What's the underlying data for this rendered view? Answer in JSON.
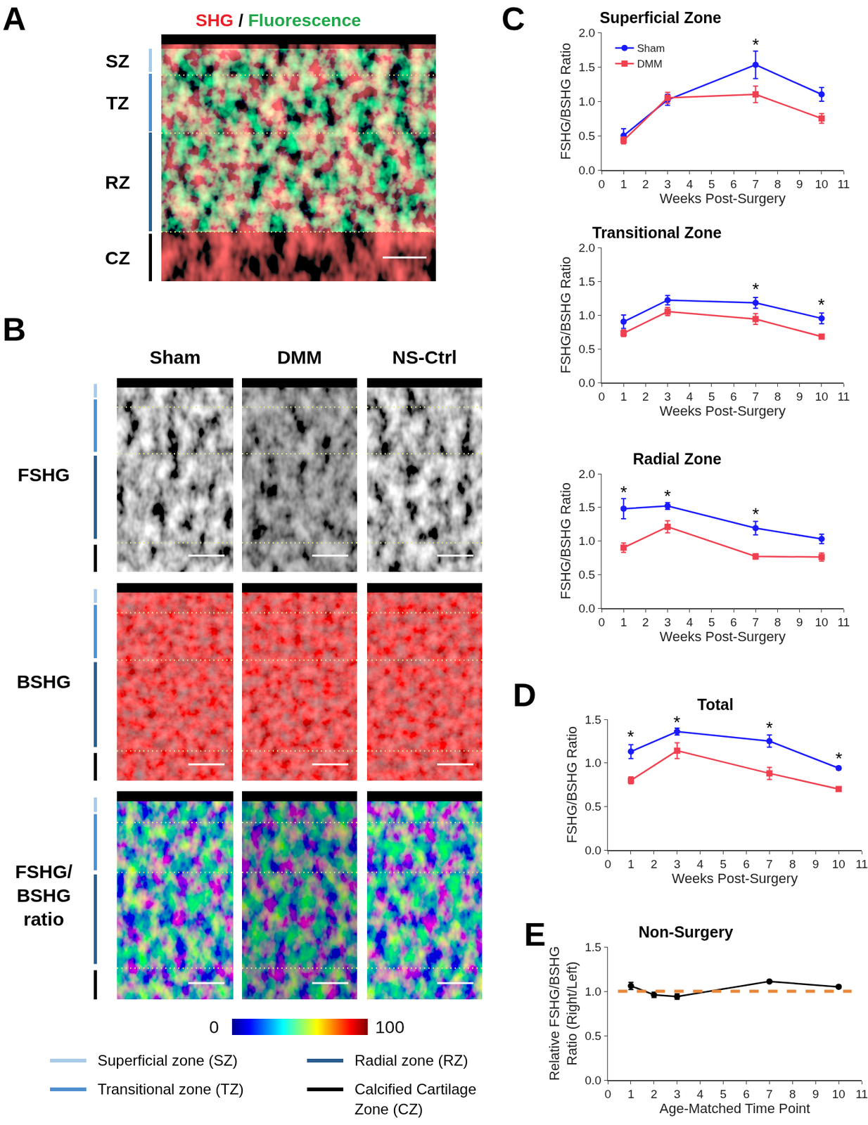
{
  "panels": {
    "A": {
      "letter": "A",
      "title_parts": [
        {
          "text": "SHG",
          "color": "#e8202a"
        },
        {
          "text": " / ",
          "color": "#000000"
        },
        {
          "text": "Fluorescence",
          "color": "#1fa84a"
        }
      ],
      "zones": [
        "SZ",
        "TZ",
        "RZ",
        "CZ"
      ]
    },
    "B": {
      "letter": "B",
      "columns": [
        "Sham",
        "DMM",
        "NS-Ctrl"
      ],
      "rows": [
        "FSHG",
        "BSHG",
        "FSHG/\nBSHG\nratio"
      ],
      "colorbar": {
        "range": [
          0,
          100
        ],
        "ticks": [
          0,
          100
        ]
      },
      "zone_legend": [
        {
          "label": "Superficial zone (SZ)",
          "color": "#a9cbe8"
        },
        {
          "label": "Radial zone (RZ)",
          "color": "#2a5d8f"
        },
        {
          "label": "Transitional zone (TZ)",
          "color": "#4f8fcf"
        },
        {
          "label": "Calcified Cartilage\nZone (CZ)",
          "color": "#000000"
        }
      ]
    }
  },
  "chart_data": [
    {
      "type": "line",
      "panel_letter": "C",
      "title": "Superficial Zone",
      "x_label": "Weeks Post-Surgery",
      "y_label": "FSHG/BSHG Ratio",
      "x": [
        1,
        3,
        7,
        10
      ],
      "series": [
        {
          "name": "Sham",
          "color": "#1a1aff",
          "marker": "circle",
          "line_style": "solid",
          "values": [
            0.5,
            1.02,
            1.53,
            1.1
          ],
          "errors": [
            0.1,
            0.08,
            0.2,
            0.1
          ]
        },
        {
          "name": "DMM",
          "color": "#f04050",
          "marker": "square",
          "line_style": "solid",
          "values": [
            0.43,
            1.05,
            1.1,
            0.75
          ],
          "errors": [
            0.05,
            0.08,
            0.12,
            0.07
          ]
        }
      ],
      "annotations": [
        {
          "x": 7,
          "y": 1.82,
          "text": "*"
        }
      ],
      "xlim": [
        0,
        11
      ],
      "xticks": [
        0,
        1,
        2,
        3,
        4,
        5,
        6,
        7,
        8,
        9,
        10,
        11
      ],
      "ylim": [
        0,
        2
      ],
      "yticks": [
        {
          "value": 0,
          "label": "0.0"
        },
        {
          "value": 0.5,
          "label": "0.5"
        },
        {
          "value": 1,
          "label": "1.0"
        },
        {
          "value": 1.5,
          "label": "1.5"
        },
        {
          "value": 2,
          "label": "2.0"
        }
      ],
      "grid": false,
      "legend": "upper left"
    },
    {
      "type": "line",
      "title": "Transitional Zone",
      "x_label": "Weeks Post-Surgery",
      "y_label": "FSHG/BSHG Ratio",
      "x": [
        1,
        3,
        7,
        10
      ],
      "series": [
        {
          "name": "Sham",
          "color": "#1a1aff",
          "marker": "circle",
          "line_style": "solid",
          "values": [
            0.9,
            1.22,
            1.18,
            0.95
          ],
          "errors": [
            0.1,
            0.07,
            0.08,
            0.08
          ]
        },
        {
          "name": "DMM",
          "color": "#f04050",
          "marker": "square",
          "line_style": "solid",
          "values": [
            0.73,
            1.05,
            0.94,
            0.68
          ],
          "errors": [
            0.05,
            0.06,
            0.08,
            0.02
          ]
        }
      ],
      "annotations": [
        {
          "x": 7,
          "y": 1.38,
          "text": "*"
        },
        {
          "x": 10,
          "y": 1.15,
          "text": "*"
        }
      ],
      "xlim": [
        0,
        11
      ],
      "xticks": [
        0,
        1,
        2,
        3,
        4,
        5,
        6,
        7,
        8,
        9,
        10,
        11
      ],
      "ylim": [
        0,
        2
      ],
      "yticks": [
        {
          "value": 0,
          "label": "0.0"
        },
        {
          "value": 0.5,
          "label": "0.5"
        },
        {
          "value": 1,
          "label": "1.0"
        },
        {
          "value": 1.5,
          "label": "1.5"
        },
        {
          "value": 2,
          "label": "2.0"
        }
      ],
      "grid": false
    },
    {
      "type": "line",
      "title": "Radial Zone",
      "x_label": "Weeks Post-Surgery",
      "y_label": "FSHG/BSHG Ratio",
      "x": [
        1,
        3,
        7,
        10
      ],
      "series": [
        {
          "name": "Sham",
          "color": "#1a1aff",
          "marker": "circle",
          "line_style": "solid",
          "values": [
            1.48,
            1.52,
            1.19,
            1.03
          ],
          "errors": [
            0.15,
            0.05,
            0.1,
            0.07
          ]
        },
        {
          "name": "DMM",
          "color": "#f04050",
          "marker": "square",
          "line_style": "solid",
          "values": [
            0.9,
            1.21,
            0.77,
            0.76
          ],
          "errors": [
            0.07,
            0.09,
            0.04,
            0.06
          ]
        }
      ],
      "annotations": [
        {
          "x": 1,
          "y": 1.73,
          "text": "*"
        },
        {
          "x": 3,
          "y": 1.67,
          "text": "*"
        },
        {
          "x": 7,
          "y": 1.4,
          "text": "*"
        }
      ],
      "xlim": [
        0,
        11
      ],
      "xticks": [
        0,
        1,
        2,
        3,
        4,
        5,
        6,
        7,
        8,
        9,
        10,
        11
      ],
      "ylim": [
        0,
        2
      ],
      "yticks": [
        {
          "value": 0,
          "label": "0.0"
        },
        {
          "value": 0.5,
          "label": "0.5"
        },
        {
          "value": 1,
          "label": "1.0"
        },
        {
          "value": 1.5,
          "label": "1.5"
        },
        {
          "value": 2,
          "label": "2.0"
        }
      ],
      "grid": false
    },
    {
      "type": "line",
      "panel_letter": "D",
      "title": "Total",
      "x_label": "Weeks Post-Surgery",
      "y_label": "FSHG/BSHG Ratio",
      "x": [
        1,
        3,
        7,
        10
      ],
      "series": [
        {
          "name": "Sham",
          "color": "#1a1aff",
          "marker": "circle",
          "line_style": "solid",
          "values": [
            1.13,
            1.36,
            1.25,
            0.94
          ],
          "errors": [
            0.08,
            0.04,
            0.07,
            0.02
          ]
        },
        {
          "name": "DMM",
          "color": "#f04050",
          "marker": "square",
          "line_style": "solid",
          "values": [
            0.8,
            1.14,
            0.88,
            0.7
          ],
          "errors": [
            0.04,
            0.09,
            0.07,
            0.01
          ]
        }
      ],
      "annotations": [
        {
          "x": 1,
          "y": 1.3,
          "text": "*"
        },
        {
          "x": 3,
          "y": 1.47,
          "text": "*"
        },
        {
          "x": 7,
          "y": 1.4,
          "text": "*"
        },
        {
          "x": 10,
          "y": 1.05,
          "text": "*"
        }
      ],
      "xlim": [
        0,
        11
      ],
      "xticks": [
        0,
        1,
        2,
        3,
        4,
        5,
        6,
        7,
        8,
        9,
        10,
        11
      ],
      "ylim": [
        0,
        1.5
      ],
      "yticks": [
        {
          "value": 0,
          "label": "0.0"
        },
        {
          "value": 0.5,
          "label": "0.5"
        },
        {
          "value": 1,
          "label": "1.0"
        },
        {
          "value": 1.5,
          "label": "1.5"
        }
      ],
      "grid": false
    },
    {
      "type": "line",
      "panel_letter": "E",
      "title": "Non-Surgery",
      "x_label": "Age-Matched Time Point",
      "y_label": "Relative FSHG/BSHG\nRatio (Right/Left)",
      "x": [
        1,
        2,
        3,
        7,
        10
      ],
      "series": [
        {
          "color": "#000000",
          "marker": "circle",
          "line_style": "solid",
          "values": [
            1.06,
            0.96,
            0.94,
            1.11,
            1.05
          ],
          "errors": [
            0.04,
            0.03,
            0.03,
            0.01,
            0.01
          ]
        }
      ],
      "hline": {
        "value": 1.0,
        "color": "#e8873a",
        "line_style": "dash"
      },
      "xlim": [
        0,
        11
      ],
      "xticks": [
        0,
        1,
        2,
        3,
        4,
        5,
        6,
        7,
        8,
        9,
        10,
        11
      ],
      "ylim": [
        0,
        1.5
      ],
      "yticks": [
        {
          "value": 0,
          "label": "0.0"
        },
        {
          "value": 0.5,
          "label": "0.5"
        },
        {
          "value": 1,
          "label": "1.0"
        },
        {
          "value": 1.5,
          "label": "1.5"
        }
      ],
      "grid": false
    }
  ]
}
